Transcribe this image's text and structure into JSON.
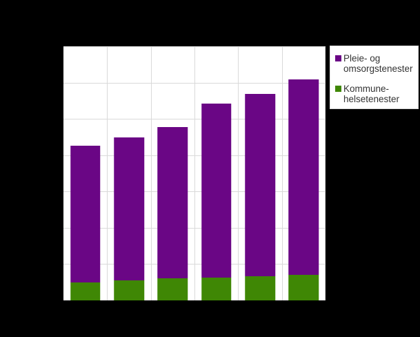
{
  "window": {
    "background_color": "#000000"
  },
  "chart": {
    "plot": {
      "background_color": "#ffffff",
      "gridline_color": "#d9d9d9"
    },
    "legend": {
      "background_color": "#ffffff",
      "border_color": "#d6d6d6",
      "items": [
        {
          "label": "Pleie- og omsorgstenester",
          "lines": [
            "Pleie- og",
            "omsorgstenester"
          ],
          "color": "#6a0685"
        },
        {
          "label": "Kommune-helsetenester",
          "lines": [
            "Kommune-",
            "helsetenester"
          ],
          "color": "#3f8705"
        }
      ]
    }
  },
  "chart_data": {
    "type": "bar",
    "stacked": true,
    "categories": [
      "",
      "",
      "",
      "",
      "",
      ""
    ],
    "series": [
      {
        "name": "Kommune-helsetenester",
        "color": "#3f8705",
        "values": [
          0.49,
          0.55,
          0.6,
          0.63,
          0.67,
          0.71
        ]
      },
      {
        "name": "Pleie- og omsorgstenester",
        "color": "#6a0685",
        "values": [
          3.77,
          3.94,
          4.17,
          4.79,
          5.02,
          5.38
        ]
      }
    ],
    "title": "",
    "xlabel": "",
    "ylabel": "",
    "ylim": [
      0,
      7
    ],
    "y_gridline_step": 1,
    "x_intervals": 6,
    "grid": true,
    "legend_position": "upper-right-outside",
    "units_note": "No axis tick labels are visible in the image; values are measured in gridline-interval units (one horizontal gridline spacing = 1 unit)."
  }
}
